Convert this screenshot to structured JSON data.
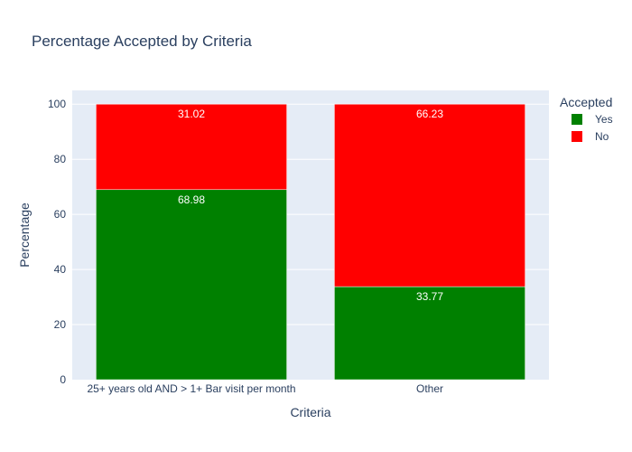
{
  "chart_data": {
    "type": "bar",
    "stacked": true,
    "title": "Percentage Accepted by Criteria",
    "xlabel": "Criteria",
    "ylabel": "Percentage",
    "categories": [
      "25+ years old AND > 1+ Bar visit per month",
      "Other"
    ],
    "series": [
      {
        "name": "Yes",
        "values": [
          68.98,
          33.77
        ],
        "color": "#008000"
      },
      {
        "name": "No",
        "values": [
          31.02,
          66.23
        ],
        "color": "#ff0000"
      }
    ],
    "ylim": [
      0,
      105
    ],
    "yticks": [
      0,
      20,
      40,
      60,
      80,
      100
    ],
    "grid": true,
    "legend": {
      "title": "Accepted",
      "position": "top-right"
    }
  }
}
